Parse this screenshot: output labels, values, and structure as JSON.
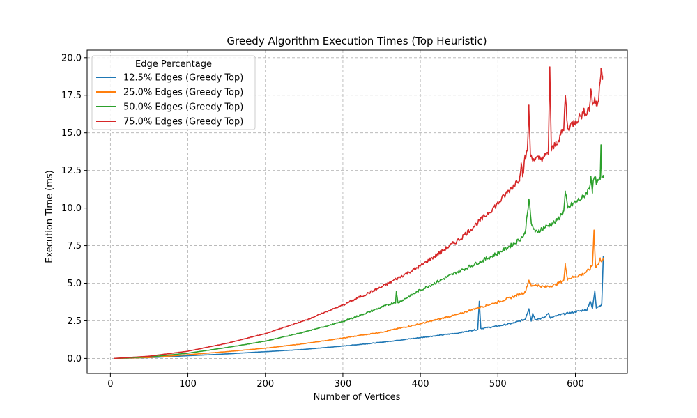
{
  "chart_data": {
    "type": "line",
    "title": "Greedy Algorithm Execution Times (Top Heuristic)",
    "xlabel": "Number of Vertices",
    "ylabel": "Execution Time (ms)",
    "xlim": [
      -30,
      667
    ],
    "ylim": [
      -1.0,
      20.5
    ],
    "xticks": [
      0,
      100,
      200,
      300,
      400,
      500,
      600
    ],
    "xtick_labels": [
      "0",
      "100",
      "200",
      "300",
      "400",
      "500",
      "600"
    ],
    "yticks": [
      0.0,
      2.5,
      5.0,
      7.5,
      10.0,
      12.5,
      15.0,
      17.5,
      20.0
    ],
    "ytick_labels": [
      "0.0",
      "2.5",
      "5.0",
      "7.5",
      "10.0",
      "12.5",
      "15.0",
      "17.5",
      "20.0"
    ],
    "grid": true,
    "legend": {
      "title": "Edge Percentage",
      "position": "top-left"
    },
    "series": [
      {
        "name": "12.5% Edges (Greedy Top)",
        "color": "#1f77b4",
        "points": [
          [
            5,
            0.0
          ],
          [
            50,
            0.05
          ],
          [
            100,
            0.18
          ],
          [
            150,
            0.3
          ],
          [
            200,
            0.45
          ],
          [
            250,
            0.6
          ],
          [
            300,
            0.82
          ],
          [
            350,
            1.07
          ],
          [
            370,
            1.2
          ],
          [
            400,
            1.38
          ],
          [
            450,
            1.7
          ],
          [
            470,
            1.9
          ],
          [
            474,
            1.92
          ],
          [
            476,
            3.8
          ],
          [
            478,
            2.0
          ],
          [
            480,
            2.0
          ],
          [
            500,
            2.15
          ],
          [
            520,
            2.35
          ],
          [
            535,
            2.6
          ],
          [
            540,
            3.3
          ],
          [
            543,
            2.5
          ],
          [
            545,
            3.0
          ],
          [
            548,
            2.6
          ],
          [
            560,
            2.7
          ],
          [
            565,
            3.0
          ],
          [
            568,
            2.7
          ],
          [
            580,
            2.9
          ],
          [
            600,
            3.1
          ],
          [
            615,
            3.25
          ],
          [
            619,
            3.8
          ],
          [
            622,
            3.3
          ],
          [
            625,
            4.5
          ],
          [
            627,
            3.4
          ],
          [
            632,
            3.5
          ],
          [
            634,
            3.6
          ],
          [
            636,
            6.8
          ]
        ]
      },
      {
        "name": "25.0% Edges (Greedy Top)",
        "color": "#ff7f0e",
        "points": [
          [
            5,
            0.0
          ],
          [
            50,
            0.06
          ],
          [
            100,
            0.25
          ],
          [
            150,
            0.45
          ],
          [
            200,
            0.68
          ],
          [
            250,
            0.98
          ],
          [
            300,
            1.35
          ],
          [
            350,
            1.75
          ],
          [
            400,
            2.3
          ],
          [
            450,
            2.95
          ],
          [
            470,
            3.3
          ],
          [
            480,
            3.45
          ],
          [
            500,
            3.75
          ],
          [
            520,
            4.1
          ],
          [
            535,
            4.4
          ],
          [
            540,
            5.2
          ],
          [
            543,
            4.8
          ],
          [
            548,
            4.9
          ],
          [
            560,
            4.75
          ],
          [
            575,
            4.9
          ],
          [
            585,
            5.2
          ],
          [
            587,
            6.2
          ],
          [
            590,
            5.3
          ],
          [
            600,
            5.45
          ],
          [
            610,
            5.6
          ],
          [
            618,
            5.9
          ],
          [
            622,
            6.2
          ],
          [
            624,
            8.5
          ],
          [
            626,
            6.1
          ],
          [
            630,
            6.3
          ],
          [
            632,
            6.6
          ],
          [
            634,
            6.5
          ],
          [
            636,
            6.7
          ]
        ]
      },
      {
        "name": "50.0% Edges (Greedy Top)",
        "color": "#2ca02c",
        "points": [
          [
            5,
            0.0
          ],
          [
            50,
            0.1
          ],
          [
            100,
            0.35
          ],
          [
            150,
            0.72
          ],
          [
            200,
            1.15
          ],
          [
            250,
            1.75
          ],
          [
            300,
            2.45
          ],
          [
            350,
            3.4
          ],
          [
            368,
            3.75
          ],
          [
            369,
            4.4
          ],
          [
            371,
            3.7
          ],
          [
            400,
            4.55
          ],
          [
            450,
            5.8
          ],
          [
            480,
            6.5
          ],
          [
            500,
            7.0
          ],
          [
            520,
            7.6
          ],
          [
            530,
            8.0
          ],
          [
            535,
            8.3
          ],
          [
            540,
            10.6
          ],
          [
            543,
            9.0
          ],
          [
            548,
            8.4
          ],
          [
            560,
            8.7
          ],
          [
            575,
            9.1
          ],
          [
            585,
            9.8
          ],
          [
            587,
            11.0
          ],
          [
            590,
            10.0
          ],
          [
            600,
            10.4
          ],
          [
            610,
            10.7
          ],
          [
            618,
            11.3
          ],
          [
            620,
            12.1
          ],
          [
            622,
            11.2
          ],
          [
            624,
            12.0
          ],
          [
            628,
            11.7
          ],
          [
            632,
            11.9
          ],
          [
            633,
            14.2
          ],
          [
            634,
            12.0
          ],
          [
            636,
            12.2
          ]
        ]
      },
      {
        "name": "75.0% Edges (Greedy Top)",
        "color": "#d62728",
        "points": [
          [
            5,
            0.0
          ],
          [
            50,
            0.15
          ],
          [
            100,
            0.48
          ],
          [
            150,
            1.0
          ],
          [
            200,
            1.65
          ],
          [
            250,
            2.5
          ],
          [
            300,
            3.55
          ],
          [
            350,
            4.75
          ],
          [
            400,
            6.15
          ],
          [
            450,
            7.9
          ],
          [
            480,
            9.3
          ],
          [
            500,
            10.3
          ],
          [
            520,
            11.5
          ],
          [
            528,
            12.0
          ],
          [
            530,
            13.0
          ],
          [
            532,
            12.2
          ],
          [
            535,
            13.3
          ],
          [
            538,
            13.8
          ],
          [
            540,
            16.6
          ],
          [
            542,
            13.5
          ],
          [
            548,
            13.2
          ],
          [
            555,
            13.3
          ],
          [
            560,
            13.4
          ],
          [
            565,
            13.6
          ],
          [
            567,
            19.3
          ],
          [
            569,
            13.8
          ],
          [
            575,
            14.3
          ],
          [
            585,
            15.2
          ],
          [
            587,
            17.5
          ],
          [
            590,
            15.3
          ],
          [
            600,
            15.8
          ],
          [
            610,
            16.3
          ],
          [
            618,
            16.6
          ],
          [
            620,
            17.9
          ],
          [
            622,
            16.9
          ],
          [
            625,
            17.3
          ],
          [
            627,
            16.8
          ],
          [
            630,
            17.2
          ],
          [
            633,
            19.3
          ],
          [
            635,
            18.8
          ]
        ]
      }
    ]
  }
}
